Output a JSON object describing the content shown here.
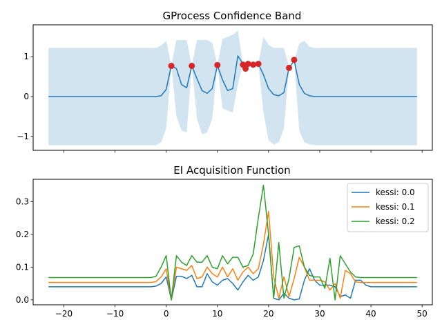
{
  "chart_data": [
    {
      "type": "line",
      "title": "GProcess Confidence Band",
      "xlabel": "",
      "ylabel": "",
      "xlim": [
        -26,
        52
      ],
      "ylim": [
        -1.35,
        1.8
      ],
      "xticks": [
        -20,
        -10,
        0,
        10,
        20,
        30,
        40,
        50
      ],
      "xtick_labels_visible": false,
      "yticks": [
        -1,
        0,
        1
      ],
      "ytick_labels": [
        "−1",
        "0",
        "1"
      ],
      "grid": false,
      "colors": {
        "mean": "#1f77b4",
        "band": "#1f77b4",
        "points": "#d62728"
      },
      "x": [
        -23,
        -22,
        -21,
        -20,
        -19,
        -18,
        -17,
        -16,
        -15,
        -14,
        -13,
        -12,
        -11,
        -10,
        -9,
        -8,
        -7,
        -6,
        -5,
        -4,
        -3,
        -2,
        -1,
        0,
        1,
        2,
        3,
        4,
        5,
        6,
        7,
        8,
        9,
        10,
        11,
        12,
        13,
        14,
        15,
        16,
        17,
        18,
        19,
        20,
        21,
        22,
        23,
        24,
        25,
        26,
        27,
        28,
        29,
        30,
        31,
        32,
        33,
        34,
        35,
        36,
        37,
        38,
        39,
        40,
        41,
        42,
        43,
        44,
        45,
        46,
        47,
        48,
        49
      ],
      "series": [
        {
          "kind": "mean",
          "values": [
            0,
            0,
            0,
            0,
            0,
            0,
            0,
            0,
            0,
            0,
            0,
            0,
            0,
            0,
            0,
            0,
            0,
            0,
            0,
            0,
            0,
            0,
            0.02,
            0.18,
            0.78,
            0.7,
            0.3,
            0.22,
            0.77,
            0.45,
            0.15,
            0.08,
            0.2,
            0.78,
            0.42,
            0.15,
            0.2,
            1.02,
            0.82,
            0.82,
            0.82,
            0.82,
            0.55,
            0.2,
            0.05,
            0.02,
            0.1,
            0.72,
            0.9,
            0.3,
            0.08,
            0.02,
            0,
            0,
            0,
            0,
            0,
            0,
            0,
            0,
            0,
            0,
            0,
            0,
            0,
            0,
            0,
            0,
            0,
            0,
            0,
            0,
            0
          ]
        },
        {
          "kind": "band-upper",
          "values": [
            1.22,
            1.22,
            1.22,
            1.22,
            1.22,
            1.22,
            1.22,
            1.22,
            1.22,
            1.22,
            1.22,
            1.22,
            1.22,
            1.22,
            1.22,
            1.22,
            1.22,
            1.22,
            1.22,
            1.22,
            1.22,
            1.22,
            1.28,
            1.4,
            0.78,
            1.42,
            1.42,
            1.42,
            0.77,
            1.42,
            1.42,
            1.42,
            1.35,
            0.78,
            1.45,
            1.5,
            1.55,
            1.66,
            0.82,
            0.82,
            0.82,
            0.82,
            1.5,
            1.3,
            1.22,
            1.22,
            1.22,
            0.72,
            0.9,
            1.33,
            1.4,
            1.25,
            1.22,
            1.22,
            1.22,
            1.22,
            1.22,
            1.22,
            1.22,
            1.22,
            1.22,
            1.22,
            1.22,
            1.22,
            1.22,
            1.22,
            1.22,
            1.22,
            1.22,
            1.22,
            1.22,
            1.22,
            1.22
          ]
        },
        {
          "kind": "band-lower",
          "values": [
            -1.22,
            -1.22,
            -1.22,
            -1.22,
            -1.22,
            -1.22,
            -1.22,
            -1.22,
            -1.22,
            -1.22,
            -1.22,
            -1.22,
            -1.22,
            -1.22,
            -1.22,
            -1.22,
            -1.22,
            -1.22,
            -1.22,
            -1.22,
            -1.22,
            -1.22,
            -1.15,
            -0.8,
            0.78,
            -0.5,
            -0.85,
            -0.9,
            0.77,
            -0.55,
            -0.95,
            -0.9,
            -0.55,
            0.78,
            -0.3,
            -0.35,
            -0.4,
            0.3,
            0.82,
            0.82,
            0.82,
            0.82,
            -0.4,
            -1.1,
            -1.2,
            -1.15,
            -0.8,
            0.72,
            0.9,
            -0.85,
            -1.15,
            -1.2,
            -1.22,
            -1.22,
            -1.22,
            -1.22,
            -1.22,
            -1.22,
            -1.22,
            -1.22,
            -1.22,
            -1.22,
            -1.22,
            -1.22,
            -1.22,
            -1.22,
            -1.22,
            -1.22,
            -1.22,
            -1.22,
            -1.22,
            -1.22,
            -1.22
          ]
        }
      ],
      "observations": {
        "x": [
          1,
          5,
          10,
          15,
          15.5,
          16,
          17,
          18,
          24,
          25
        ],
        "y": [
          0.77,
          0.77,
          0.79,
          0.8,
          0.7,
          0.82,
          0.8,
          0.82,
          0.72,
          0.92
        ]
      }
    },
    {
      "type": "line",
      "title": "EI Acquisition Function",
      "xlabel": "",
      "ylabel": "",
      "xlim": [
        -26,
        52
      ],
      "ylim": [
        -0.015,
        0.368
      ],
      "xticks": [
        -20,
        -10,
        0,
        10,
        20,
        30,
        40,
        50
      ],
      "xtick_labels": [
        "−20",
        "−10",
        "0",
        "10",
        "20",
        "30",
        "40",
        "50"
      ],
      "yticks": [
        0.0,
        0.1,
        0.2,
        0.3
      ],
      "ytick_labels": [
        "0.0",
        "0.1",
        "0.2",
        "0.3"
      ],
      "grid": false,
      "legend_position": "top-right",
      "x": [
        -23,
        -22,
        -21,
        -20,
        -19,
        -18,
        -17,
        -16,
        -15,
        -14,
        -13,
        -12,
        -11,
        -10,
        -9,
        -8,
        -7,
        -6,
        -5,
        -4,
        -3,
        -2,
        -1,
        0,
        1,
        2,
        3,
        4,
        5,
        6,
        7,
        8,
        9,
        10,
        11,
        12,
        13,
        14,
        15,
        16,
        17,
        18,
        19,
        20,
        21,
        22,
        23,
        24,
        25,
        26,
        27,
        28,
        29,
        30,
        31,
        32,
        33,
        34,
        35,
        36,
        37,
        38,
        39,
        40,
        41,
        42,
        43,
        44,
        45,
        46,
        47,
        48,
        49
      ],
      "series": [
        {
          "name": "kessi: 0.0",
          "color": "#1f77b4",
          "values": [
            0.04,
            0.04,
            0.04,
            0.04,
            0.04,
            0.04,
            0.04,
            0.04,
            0.04,
            0.04,
            0.04,
            0.04,
            0.04,
            0.04,
            0.04,
            0.04,
            0.04,
            0.04,
            0.04,
            0.04,
            0.04,
            0.042,
            0.05,
            0.07,
            0.0,
            0.072,
            0.072,
            0.065,
            0.075,
            0.04,
            0.04,
            0.08,
            0.055,
            0.045,
            0.06,
            0.065,
            0.05,
            0.03,
            0.055,
            0.075,
            0.06,
            0.07,
            0.12,
            0.2,
            0.005,
            0.0,
            0.02,
            0.005,
            0.0,
            0.003,
            0.06,
            0.095,
            0.06,
            0.045,
            0.045,
            0.045,
            0.04,
            0.01,
            0.015,
            0.005,
            0.06,
            0.06,
            0.045,
            0.04,
            0.04,
            0.04,
            0.04,
            0.04,
            0.04,
            0.04,
            0.04,
            0.04,
            0.04
          ]
        },
        {
          "name": "kessi: 0.1",
          "color": "#ff7f0e",
          "values": [
            0.053,
            0.053,
            0.053,
            0.053,
            0.053,
            0.053,
            0.053,
            0.053,
            0.053,
            0.053,
            0.053,
            0.053,
            0.053,
            0.053,
            0.053,
            0.053,
            0.053,
            0.053,
            0.053,
            0.053,
            0.053,
            0.056,
            0.07,
            0.095,
            0.0,
            0.1,
            0.095,
            0.09,
            0.105,
            0.065,
            0.07,
            0.1,
            0.08,
            0.07,
            0.1,
            0.07,
            0.095,
            0.06,
            0.085,
            0.1,
            0.08,
            0.095,
            0.17,
            0.27,
            0.07,
            0.005,
            0.07,
            0.01,
            0.065,
            0.13,
            0.1,
            0.06,
            0.06,
            0.06,
            0.055,
            0.03,
            0.05,
            0.005,
            0.09,
            0.08,
            0.055,
            0.053,
            0.053,
            0.053,
            0.053,
            0.053,
            0.053,
            0.053,
            0.053,
            0.053,
            0.053,
            0.053,
            0.053
          ]
        },
        {
          "name": "kessi: 0.2",
          "color": "#2ca02c",
          "values": [
            0.068,
            0.068,
            0.068,
            0.068,
            0.068,
            0.068,
            0.068,
            0.068,
            0.068,
            0.068,
            0.068,
            0.068,
            0.068,
            0.068,
            0.068,
            0.068,
            0.068,
            0.068,
            0.068,
            0.068,
            0.068,
            0.072,
            0.1,
            0.135,
            0.0,
            0.135,
            0.115,
            0.105,
            0.135,
            0.115,
            0.115,
            0.135,
            0.1,
            0.095,
            0.135,
            0.11,
            0.13,
            0.13,
            0.1,
            0.105,
            0.14,
            0.25,
            0.35,
            0.2,
            0.005,
            0.175,
            0.005,
            0.065,
            0.16,
            0.165,
            0.1,
            0.075,
            0.07,
            0.07,
            0.035,
            0.127,
            0.0,
            0.135,
            0.11,
            0.085,
            0.07,
            0.068,
            0.068,
            0.068,
            0.068,
            0.068,
            0.068,
            0.068,
            0.068,
            0.068,
            0.068,
            0.068,
            0.068
          ]
        }
      ]
    }
  ]
}
